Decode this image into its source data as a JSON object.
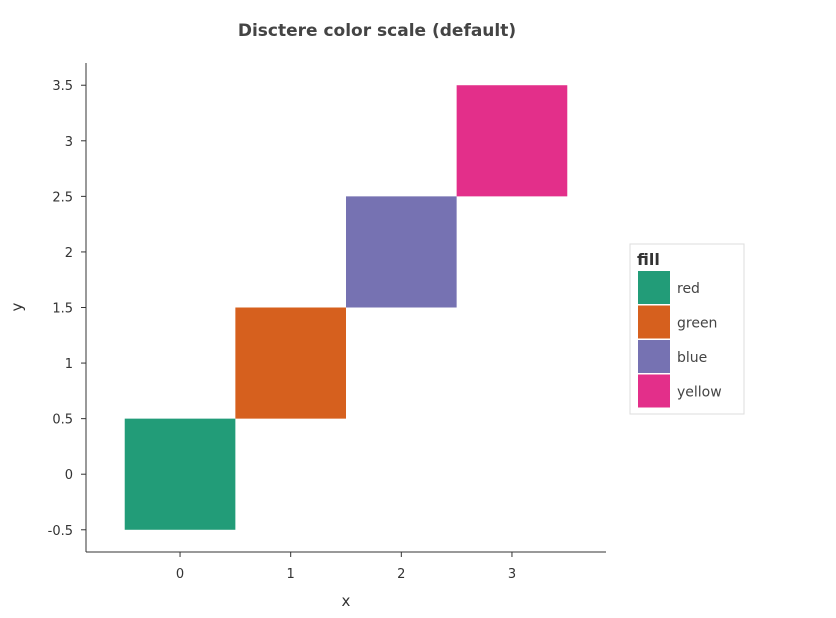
{
  "chart_data": {
    "type": "heatmap",
    "title": "Disctere color scale (default)",
    "xlabel": "x",
    "ylabel": "y",
    "xlim": [
      -0.85,
      3.85
    ],
    "ylim": [
      -0.7,
      3.7
    ],
    "x_ticks": [
      "0",
      "1",
      "2",
      "3"
    ],
    "y_ticks": [
      "-0.5",
      "0",
      "0.5",
      "1",
      "1.5",
      "2",
      "2.5",
      "3",
      "3.5"
    ],
    "tiles": [
      {
        "x": 0,
        "y": 0,
        "width": 1,
        "height": 1,
        "fill": "red",
        "color": "#229c78"
      },
      {
        "x": 1,
        "y": 1,
        "width": 1,
        "height": 1,
        "fill": "green",
        "color": "#d6601e"
      },
      {
        "x": 2,
        "y": 2,
        "width": 1,
        "height": 1,
        "fill": "blue",
        "color": "#7672b2"
      },
      {
        "x": 3,
        "y": 3,
        "width": 1,
        "height": 1,
        "fill": "yellow",
        "color": "#e32f8a"
      }
    ],
    "grid": false,
    "legend": {
      "title": "fill",
      "position": "right",
      "entries": [
        {
          "label": "red",
          "color": "#229c78"
        },
        {
          "label": "green",
          "color": "#d6601e"
        },
        {
          "label": "blue",
          "color": "#7672b2"
        },
        {
          "label": "yellow",
          "color": "#e32f8a"
        }
      ]
    }
  }
}
